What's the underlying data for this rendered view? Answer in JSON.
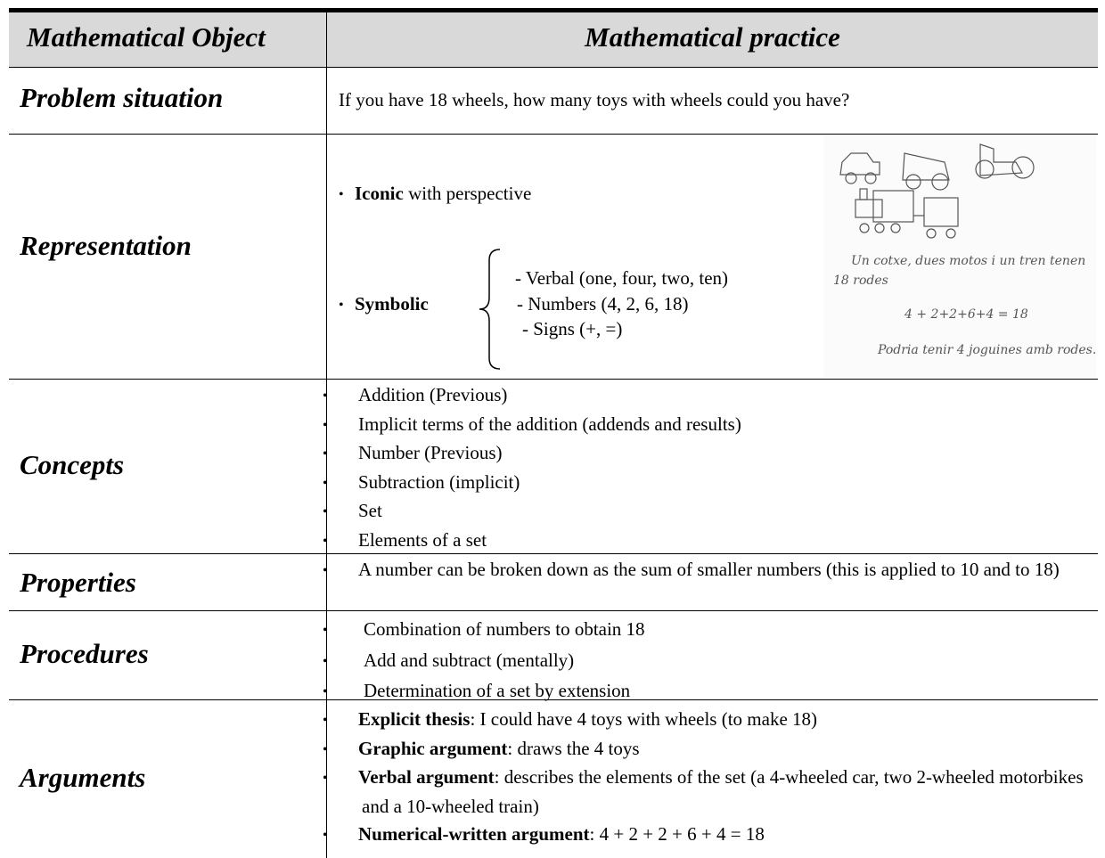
{
  "header": {
    "object": "Mathematical Object",
    "practice": "Mathematical practice"
  },
  "problem": {
    "label": "Problem situation",
    "text": "If you have 18 wheels, how many toys with wheels could you have?"
  },
  "representation": {
    "label": "Representation",
    "iconic": {
      "bold": "Iconic",
      "text": "with perspective"
    },
    "symbolic": {
      "bold": "Symbolic",
      "items": [
        "- Verbal (one, four, two, ten)",
        "- Numbers (4, 2, 6, 18)",
        "- Signs (+, =)"
      ]
    },
    "handwriting": [
      "Un cotxe, dues motos i un tren tenen",
      "18 rodes",
      "4 + 2+2+6+4 = 18",
      "Podria tenir 4 joguines amb rodes."
    ]
  },
  "concepts": {
    "label": "Concepts",
    "items": [
      "Addition (Previous)",
      "Implicit terms of the addition (addends and results)",
      "Number (Previous)",
      "Subtraction (implicit)",
      "Set",
      "Elements of a set"
    ]
  },
  "properties": {
    "label": "Properties",
    "items": [
      "A number can be broken down as the sum of smaller numbers (this is applied to 10 and to 18)"
    ]
  },
  "procedures": {
    "label": "Procedures",
    "items": [
      "Combination of numbers to obtain 18",
      "Add and subtract (mentally)",
      "Determination of a set by extension"
    ]
  },
  "arguments": {
    "label": "Arguments",
    "items": [
      {
        "bold": "Explicit thesis",
        "text": ": I could have 4 toys with wheels (to make 18)"
      },
      {
        "bold": "Graphic argument",
        "text": ": draws the 4 toys"
      },
      {
        "bold": "Verbal argument",
        "text": ": describes the elements of the set (a 4-wheeled car, two 2-wheeled motorbikes and a 10-wheeled train)"
      },
      {
        "bold": "Numerical-written argument",
        "text": ": 4 + 2 + 2 + 6 + 4 = 18"
      }
    ]
  }
}
